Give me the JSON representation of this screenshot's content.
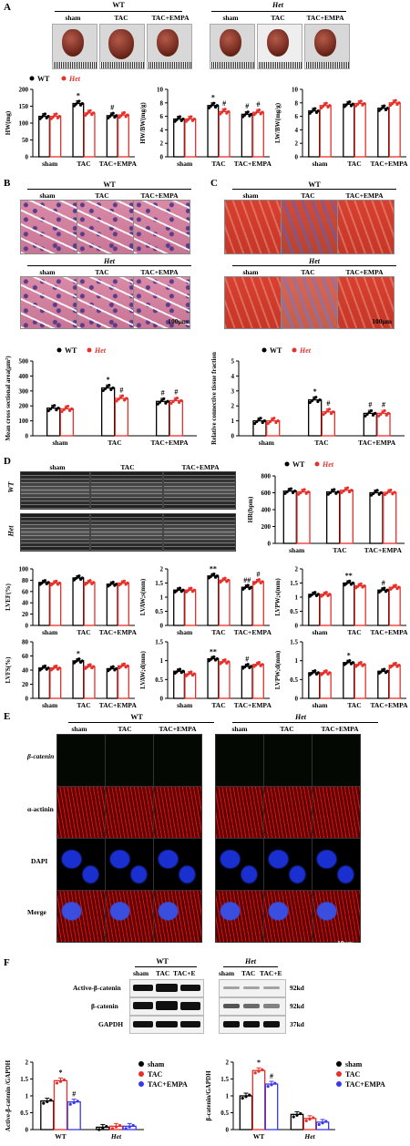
{
  "panels": {
    "A": "A",
    "B": "B",
    "C": "C",
    "D": "D",
    "E": "E",
    "F": "F"
  },
  "genotypes": {
    "wt": "WT",
    "het": "Het"
  },
  "groups": {
    "sham": "sham",
    "tac": "TAC",
    "tac_empa": "TAC+EMPA",
    "tac_e": "TAC+E"
  },
  "scalebars": {
    "b": "100μm",
    "c": "100μm",
    "e": "10μm"
  },
  "legend_wt_het": {
    "wt": "WT",
    "het": "Het"
  },
  "colors": {
    "wt": "#000000",
    "het": "#e8302a",
    "tac": "#e8302a",
    "empa": "#3a3ae8",
    "sham": "#000000"
  },
  "panelE": {
    "rows": [
      "β-catenin",
      "α-actinin",
      "DAPI",
      "Merge"
    ]
  },
  "panelF": {
    "bands": [
      "Active-β-catenin",
      "β-catenin",
      "GAPDH"
    ],
    "kd": [
      "92kd",
      "92kd",
      "37kd"
    ]
  },
  "chart_data": [
    {
      "type": "bar",
      "id": "HW",
      "ylabel": "HW(mg)",
      "ylim": [
        0,
        200
      ],
      "yticks": [
        0,
        50,
        100,
        150,
        200
      ],
      "categories": [
        "sham",
        "TAC",
        "TAC+EMPA"
      ],
      "series": [
        {
          "name": "WT",
          "values": [
            120,
            158,
            122
          ]
        },
        {
          "name": "Het",
          "values": [
            120,
            130,
            124
          ]
        }
      ],
      "annotations": [
        {
          "text": "*",
          "cat": 1,
          "s": 0
        },
        {
          "text": "#",
          "cat": 2,
          "s": 0
        }
      ]
    },
    {
      "type": "bar",
      "id": "HWBW",
      "ylabel": "HW/BW(mg/g)",
      "ylim": [
        0,
        10
      ],
      "yticks": [
        0,
        2,
        4,
        6,
        8,
        10
      ],
      "categories": [
        "sham",
        "TAC",
        "TAC+EMPA"
      ],
      "series": [
        {
          "name": "WT",
          "values": [
            5.6,
            7.6,
            6.3
          ]
        },
        {
          "name": "Het",
          "values": [
            5.6,
            6.7,
            6.6
          ]
        }
      ],
      "annotations": [
        {
          "text": "*",
          "cat": 1,
          "s": 0
        },
        {
          "text": "#",
          "cat": 1,
          "s": 1
        },
        {
          "text": "#",
          "cat": 2,
          "s": 0
        },
        {
          "text": "#",
          "cat": 2,
          "s": 1
        }
      ]
    },
    {
      "type": "bar",
      "id": "LWBW",
      "ylabel": "LW/BW(mg/g)",
      "ylim": [
        0,
        10
      ],
      "yticks": [
        0,
        2,
        4,
        6,
        8,
        10
      ],
      "categories": [
        "sham",
        "TAC",
        "TAC+EMPA"
      ],
      "series": [
        {
          "name": "WT",
          "values": [
            6.8,
            7.8,
            7.2
          ]
        },
        {
          "name": "Het",
          "values": [
            7.6,
            7.9,
            8.0
          ]
        }
      ],
      "annotations": []
    },
    {
      "type": "bar",
      "id": "CSA",
      "ylabel": "Mean cross sectional area(μm²)",
      "ylim": [
        0,
        500
      ],
      "yticks": [
        0,
        100,
        200,
        300,
        400,
        500
      ],
      "categories": [
        "sham",
        "TAC",
        "TAC+EMPA"
      ],
      "series": [
        {
          "name": "WT",
          "values": [
            185,
            320,
            230
          ]
        },
        {
          "name": "Het",
          "values": [
            180,
            250,
            235
          ]
        }
      ],
      "annotations": [
        {
          "text": "*",
          "cat": 1,
          "s": 0
        },
        {
          "text": "#",
          "cat": 1,
          "s": 1
        },
        {
          "text": "#",
          "cat": 2,
          "s": 0
        },
        {
          "text": "#",
          "cat": 2,
          "s": 1
        }
      ]
    },
    {
      "type": "bar",
      "id": "FIB",
      "ylabel": "Relative connective tissue fraction",
      "ylim": [
        0,
        5
      ],
      "yticks": [
        0,
        1,
        2,
        3,
        4,
        5
      ],
      "categories": [
        "sham",
        "TAC",
        "TAC+EMPA"
      ],
      "series": [
        {
          "name": "WT",
          "values": [
            1.0,
            2.4,
            1.5
          ]
        },
        {
          "name": "Het",
          "values": [
            1.0,
            1.6,
            1.5
          ]
        }
      ],
      "annotations": [
        {
          "text": "*",
          "cat": 1,
          "s": 0
        },
        {
          "text": "#",
          "cat": 1,
          "s": 1
        },
        {
          "text": "#",
          "cat": 2,
          "s": 0
        },
        {
          "text": "#",
          "cat": 2,
          "s": 1
        }
      ]
    },
    {
      "type": "bar",
      "id": "HR",
      "ylabel": "HR(bpm)",
      "ylim": [
        0,
        800
      ],
      "yticks": [
        0,
        200,
        400,
        600,
        800
      ],
      "categories": [
        "sham",
        "TAC",
        "TAC+EMPA"
      ],
      "series": [
        {
          "name": "WT",
          "values": [
            620,
            610,
            600
          ]
        },
        {
          "name": "Het",
          "values": [
            610,
            630,
            605
          ]
        }
      ],
      "annotations": []
    },
    {
      "type": "bar",
      "id": "LVEF",
      "ylabel": "LVEF(%)",
      "ylim": [
        0,
        100
      ],
      "yticks": [
        0,
        20,
        40,
        60,
        80,
        100
      ],
      "categories": [
        "sham",
        "TAC",
        "TAC+EMPA"
      ],
      "series": [
        {
          "name": "WT",
          "values": [
            76,
            84,
            73
          ]
        },
        {
          "name": "Het",
          "values": [
            75,
            76,
            75
          ]
        }
      ],
      "annotations": []
    },
    {
      "type": "bar",
      "id": "LVAWs",
      "ylabel": "LVAW;s(mm)",
      "ylim": [
        0.0,
        2.0
      ],
      "yticks": [
        0.0,
        0.5,
        1.0,
        1.5,
        2.0
      ],
      "categories": [
        "sham",
        "TAC",
        "TAC+EMPA"
      ],
      "series": [
        {
          "name": "WT",
          "values": [
            1.25,
            1.75,
            1.35
          ]
        },
        {
          "name": "Het",
          "values": [
            1.25,
            1.6,
            1.55
          ]
        }
      ],
      "annotations": [
        {
          "text": "**",
          "cat": 1,
          "s": 0
        },
        {
          "text": "##",
          "cat": 2,
          "s": 0
        },
        {
          "text": "#",
          "cat": 2,
          "s": 1
        }
      ]
    },
    {
      "type": "bar",
      "id": "LVPWs",
      "ylabel": "LVPW;s(mm)",
      "ylim": [
        0.0,
        2.0
      ],
      "yticks": [
        0.0,
        0.5,
        1.0,
        1.5,
        2.0
      ],
      "categories": [
        "sham",
        "TAC",
        "TAC+EMPA"
      ],
      "series": [
        {
          "name": "WT",
          "values": [
            1.1,
            1.5,
            1.25
          ]
        },
        {
          "name": "Het",
          "values": [
            1.1,
            1.4,
            1.35
          ]
        }
      ],
      "annotations": [
        {
          "text": "**",
          "cat": 1,
          "s": 0
        },
        {
          "text": "#",
          "cat": 2,
          "s": 0
        }
      ]
    },
    {
      "type": "bar",
      "id": "LVFS",
      "ylabel": "LVFS(%)",
      "ylim": [
        0,
        80
      ],
      "yticks": [
        0,
        20,
        40,
        60,
        80
      ],
      "categories": [
        "sham",
        "TAC",
        "TAC+EMPA"
      ],
      "series": [
        {
          "name": "WT",
          "values": [
            43,
            53,
            42
          ]
        },
        {
          "name": "Het",
          "values": [
            43,
            45,
            46
          ]
        }
      ],
      "annotations": [
        {
          "text": "*",
          "cat": 1,
          "s": 0
        }
      ]
    },
    {
      "type": "bar",
      "id": "LVAWd",
      "ylabel": "LVAW;d(mm)",
      "ylim": [
        0.0,
        1.5
      ],
      "yticks": [
        0.0,
        0.5,
        1.0,
        1.5
      ],
      "categories": [
        "sham",
        "TAC",
        "TAC+EMPA"
      ],
      "series": [
        {
          "name": "WT",
          "values": [
            0.72,
            1.05,
            0.85
          ]
        },
        {
          "name": "Het",
          "values": [
            0.65,
            0.97,
            0.9
          ]
        }
      ],
      "annotations": [
        {
          "text": "**",
          "cat": 1,
          "s": 0
        },
        {
          "text": "#",
          "cat": 2,
          "s": 0
        }
      ]
    },
    {
      "type": "bar",
      "id": "LVPWd",
      "ylabel": "LVPW;d(mm)",
      "ylim": [
        0.0,
        1.5
      ],
      "yticks": [
        0.0,
        0.5,
        1.0,
        1.5
      ],
      "categories": [
        "sham",
        "TAC",
        "TAC+EMPA"
      ],
      "series": [
        {
          "name": "WT",
          "values": [
            0.68,
            0.95,
            0.72
          ]
        },
        {
          "name": "Het",
          "values": [
            0.68,
            0.9,
            0.88
          ]
        }
      ],
      "annotations": [
        {
          "text": "*",
          "cat": 1,
          "s": 0
        }
      ]
    },
    {
      "type": "bar",
      "id": "ACTB",
      "ylabel": "Active-β-catenin /GAPDH",
      "ylim": [
        0,
        2.0
      ],
      "yticks": [
        0,
        0.5,
        1.0,
        1.5,
        2.0
      ],
      "categories": [
        "WT",
        "Het"
      ],
      "series": [
        {
          "name": "sham",
          "values": [
            0.85,
            0.07
          ]
        },
        {
          "name": "TAC",
          "values": [
            1.45,
            0.1
          ]
        },
        {
          "name": "TAC+EMPA",
          "values": [
            0.82,
            0.1
          ]
        }
      ],
      "annotations": [
        {
          "text": "*",
          "cat": 0,
          "s": 1
        },
        {
          "text": "#",
          "cat": 0,
          "s": 2
        }
      ]
    },
    {
      "type": "bar",
      "id": "BCAT",
      "ylabel": "β-catenin/GAPDH",
      "ylim": [
        0,
        2.0
      ],
      "yticks": [
        0,
        0.5,
        1.0,
        1.5,
        2.0
      ],
      "categories": [
        "WT",
        "Het"
      ],
      "series": [
        {
          "name": "sham",
          "values": [
            1.0,
            0.45
          ]
        },
        {
          "name": "TAC",
          "values": [
            1.75,
            0.33
          ]
        },
        {
          "name": "TAC+EMPA",
          "values": [
            1.35,
            0.22
          ]
        }
      ],
      "annotations": [
        {
          "text": "*",
          "cat": 0,
          "s": 1
        },
        {
          "text": "#",
          "cat": 0,
          "s": 2
        }
      ]
    }
  ]
}
